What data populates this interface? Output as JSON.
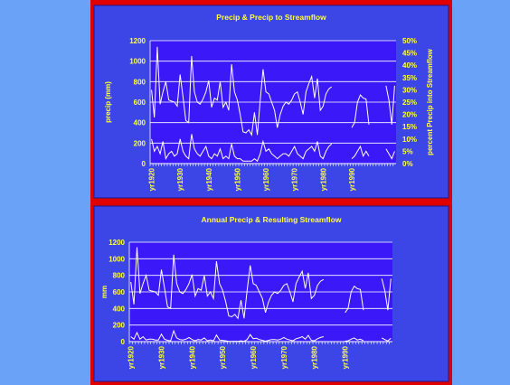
{
  "colors": {
    "page_bg": "#6a9cf6",
    "frame": "#e00000",
    "panel_bg": "#3c46e6",
    "plot_bg": "#3a18f8",
    "title_text": "#ffff40",
    "axis_text": "#ffff40",
    "line": "#ffffff",
    "grid": "#ffffff"
  },
  "chart_data": [
    {
      "type": "line",
      "title": "Precip & Precip to Streamflow",
      "xlabel": "",
      "ylabel": "precip (mm)",
      "y2label": "percent Precip into Streamflow",
      "ylim": [
        0,
        1200
      ],
      "y2lim": [
        0,
        50
      ],
      "yticks": [
        "0",
        "200",
        "400",
        "600",
        "800",
        "1000",
        "1200"
      ],
      "y2ticks": [
        "0%",
        "5%",
        "10%",
        "15%",
        "20%",
        "25%",
        "30%",
        "35%",
        "40%",
        "45%",
        "50%"
      ],
      "xticks": [
        "yr1920",
        "yr1930",
        "yr1940",
        "yr1950",
        "yr1960",
        "yr1970",
        "yr1980",
        "yr1990"
      ],
      "grid": true,
      "legend": "none",
      "x_start": 1920,
      "series": [
        {
          "axis": "left",
          "values": [
            720,
            450,
            1140,
            580,
            700,
            800,
            620,
            610,
            600,
            560,
            870,
            650,
            420,
            400,
            1050,
            700,
            600,
            580,
            630,
            700,
            810,
            550,
            640,
            620,
            800,
            550,
            600,
            520,
            970,
            700,
            620,
            480,
            310,
            300,
            330,
            280,
            500,
            280,
            620,
            920,
            700,
            680,
            600,
            520,
            350,
            480,
            560,
            600,
            580,
            620,
            680,
            700,
            600,
            480,
            700,
            780,
            850,
            640,
            830,
            520,
            560,
            680,
            730,
            750,
            null,
            null,
            null,
            null,
            null,
            null,
            350,
            400,
            600,
            670,
            640,
            630,
            380,
            null,
            null,
            null,
            null,
            null,
            760,
            620,
            380,
            760
          ]
        },
        {
          "axis": "right",
          "values": [
            10,
            5,
            7,
            4,
            9,
            2,
            4,
            5,
            3,
            4,
            10,
            5,
            3,
            2,
            12,
            6,
            4,
            3,
            5,
            7,
            3,
            2,
            4,
            3,
            6,
            2,
            3,
            2,
            8,
            3,
            2,
            2,
            1,
            1,
            1,
            1,
            2,
            1,
            4,
            9,
            5,
            6,
            4,
            3,
            2,
            3,
            4,
            4,
            3,
            5,
            7,
            4,
            3,
            2,
            5,
            6,
            7,
            5,
            9,
            3,
            2,
            5,
            7,
            8,
            null,
            null,
            null,
            null,
            null,
            null,
            2,
            3,
            5,
            7,
            3,
            5,
            3,
            null,
            null,
            null,
            null,
            null,
            6,
            4,
            2,
            5
          ]
        }
      ]
    },
    {
      "type": "line",
      "title": "Annual Precip & Resulting Streamflow",
      "xlabel": "",
      "ylabel": "mm",
      "ylim": [
        0,
        1200
      ],
      "yticks": [
        "0",
        "200",
        "400",
        "600",
        "800",
        "1000",
        "1200"
      ],
      "xticks": [
        "yr1920",
        "yr1930",
        "yr1940",
        "yr1950",
        "yr1960",
        "yr1970",
        "yr1980",
        "yr1990"
      ],
      "grid": true,
      "legend": "none",
      "x_start": 1920,
      "series": [
        {
          "values": [
            720,
            450,
            1140,
            580,
            700,
            800,
            620,
            610,
            600,
            560,
            870,
            650,
            420,
            400,
            1050,
            700,
            600,
            580,
            630,
            700,
            810,
            550,
            640,
            620,
            800,
            550,
            600,
            520,
            970,
            700,
            620,
            480,
            310,
            300,
            330,
            280,
            500,
            280,
            620,
            920,
            700,
            680,
            600,
            520,
            350,
            480,
            560,
            600,
            580,
            620,
            680,
            700,
            600,
            480,
            700,
            780,
            850,
            640,
            830,
            520,
            560,
            680,
            730,
            750,
            null,
            null,
            null,
            null,
            null,
            null,
            350,
            400,
            600,
            670,
            640,
            630,
            380,
            null,
            null,
            null,
            null,
            null,
            760,
            620,
            380,
            760
          ]
        },
        {
          "values": [
            60,
            30,
            110,
            30,
            60,
            20,
            30,
            30,
            20,
            20,
            90,
            30,
            15,
            10,
            130,
            45,
            25,
            20,
            30,
            50,
            25,
            10,
            25,
            20,
            45,
            10,
            20,
            10,
            80,
            20,
            15,
            10,
            3,
            3,
            4,
            3,
            10,
            3,
            25,
            85,
            35,
            40,
            25,
            15,
            5,
            15,
            25,
            25,
            20,
            30,
            50,
            30,
            20,
            10,
            35,
            45,
            60,
            30,
            75,
            15,
            10,
            35,
            50,
            60,
            null,
            null,
            null,
            null,
            null,
            null,
            5,
            10,
            30,
            45,
            20,
            30,
            10,
            null,
            null,
            null,
            null,
            null,
            45,
            25,
            8,
            40
          ]
        }
      ]
    }
  ]
}
